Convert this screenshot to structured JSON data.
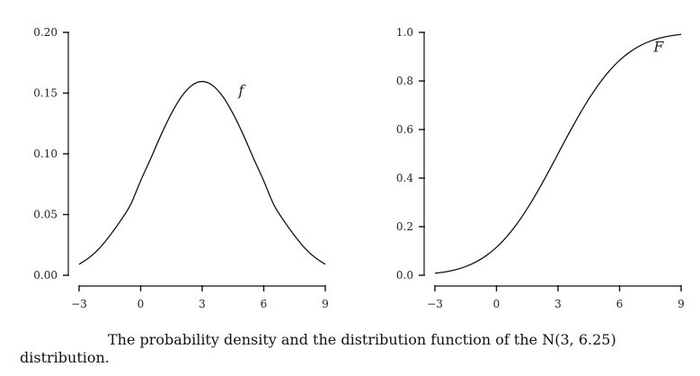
{
  "caption": "The probability density and the distribution function of the N(3, 6.25) distribution.",
  "chart_data": [
    {
      "type": "line",
      "name_label": "f",
      "x": [
        -3,
        -2.5,
        -2,
        -1.5,
        -1,
        -0.5,
        0,
        0.5,
        1,
        1.5,
        2,
        2.5,
        3,
        3.5,
        4,
        4.5,
        5,
        5.5,
        6,
        6.5,
        7,
        7.5,
        8,
        8.5,
        9
      ],
      "y": [
        0.009,
        0.0146,
        0.0224,
        0.0327,
        0.0444,
        0.0578,
        0.0778,
        0.0964,
        0.1158,
        0.1332,
        0.1473,
        0.1564,
        0.1596,
        0.1564,
        0.1473,
        0.1332,
        0.1158,
        0.0964,
        0.0778,
        0.0578,
        0.0444,
        0.0327,
        0.0224,
        0.0146,
        0.009
      ],
      "xlim": [
        -3,
        9
      ],
      "ylim": [
        0,
        0.2
      ],
      "xticks": [
        -3,
        0,
        3,
        6,
        9
      ],
      "yticks": [
        0.0,
        0.05,
        0.1,
        0.15,
        0.2
      ],
      "xtick_labels": [
        "−3",
        "0",
        "3",
        "6",
        "9"
      ],
      "ytick_labels": [
        "0.00",
        "0.05",
        "0.10",
        "0.15",
        "0.20"
      ],
      "label_at": [
        4.9,
        0.148
      ]
    },
    {
      "type": "line",
      "name_label": "F",
      "x": [
        -3,
        -2.5,
        -2,
        -1.5,
        -1,
        -0.5,
        0,
        0.5,
        1,
        1.5,
        2,
        2.5,
        3,
        3.5,
        4,
        4.5,
        5,
        5.5,
        6,
        6.5,
        7,
        7.5,
        8,
        8.5,
        9
      ],
      "y": [
        0.0082,
        0.0139,
        0.0228,
        0.0359,
        0.0548,
        0.0808,
        0.1151,
        0.1587,
        0.2119,
        0.2743,
        0.3446,
        0.4207,
        0.5,
        0.5793,
        0.6554,
        0.7257,
        0.7881,
        0.8413,
        0.8849,
        0.9192,
        0.9452,
        0.9641,
        0.9772,
        0.9861,
        0.9918
      ],
      "xlim": [
        -3,
        9
      ],
      "ylim": [
        0,
        1
      ],
      "xticks": [
        -3,
        0,
        3,
        6,
        9
      ],
      "yticks": [
        0.0,
        0.2,
        0.4,
        0.6,
        0.8,
        1.0
      ],
      "xtick_labels": [
        "−3",
        "0",
        "3",
        "6",
        "9"
      ],
      "ytick_labels": [
        "0.0",
        "0.2",
        "0.4",
        "0.6",
        "0.8",
        "1.0"
      ],
      "label_at": [
        7.9,
        0.92
      ]
    }
  ]
}
